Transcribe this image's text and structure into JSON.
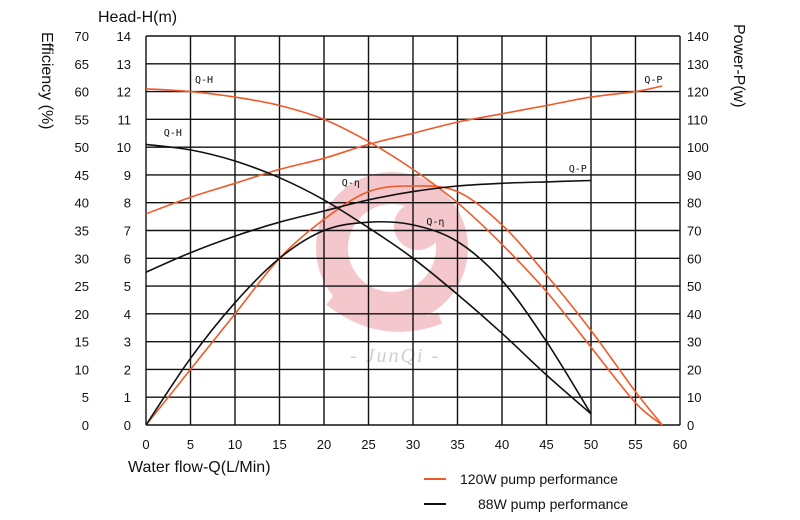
{
  "chart_data": {
    "type": "line",
    "x_label": "Water flow-Q(L/Min)",
    "y_left_outer_label": "Efficiency (%)",
    "y_left_inner_label": "Head-H(m)",
    "y_right_label": "Power-P(w)",
    "x_ticks": [
      "0",
      "5",
      "10",
      "15",
      "20",
      "25",
      "30",
      "35",
      "40",
      "45",
      "50",
      "55",
      "60"
    ],
    "eff_ticks": [
      "0",
      "5",
      "10",
      "15",
      "20",
      "25",
      "30",
      "35",
      "40",
      "45",
      "50",
      "55",
      "60",
      "65",
      "70"
    ],
    "head_ticks": [
      "0",
      "1",
      "2",
      "3",
      "4",
      "5",
      "6",
      "7",
      "8",
      "9",
      "10",
      "11",
      "12",
      "13",
      "14"
    ],
    "power_ticks": [
      "0",
      "10",
      "20",
      "30",
      "40",
      "50",
      "60",
      "70",
      "80",
      "90",
      "100",
      "110",
      "120",
      "130",
      "140"
    ],
    "xlim": [
      0,
      60
    ],
    "head_lim": [
      0,
      14
    ],
    "eff_lim": [
      0,
      70
    ],
    "power_lim": [
      0,
      140
    ],
    "grid": true,
    "watermark": "JunQi",
    "legend": [
      {
        "label": "120W pump performance",
        "color": "#f05a28"
      },
      {
        "label": "88W pump performance",
        "color": "#111111"
      }
    ],
    "series": [
      {
        "name": "120W pump performance",
        "curve": "Q-H",
        "axis": "head",
        "color": "#f05a28",
        "x": [
          0,
          5,
          10,
          15,
          20,
          25,
          30,
          35,
          40,
          45,
          50,
          55,
          58
        ],
        "y": [
          12.1,
          12.0,
          11.8,
          11.5,
          11.0,
          10.2,
          9.2,
          8.0,
          6.5,
          4.8,
          2.8,
          0.8,
          0
        ]
      },
      {
        "name": "120W pump performance",
        "curve": "Q-P",
        "axis": "power",
        "color": "#f05a28",
        "x": [
          0,
          5,
          10,
          15,
          20,
          25,
          30,
          35,
          40,
          45,
          50,
          55,
          58
        ],
        "y": [
          76,
          82,
          87,
          92,
          96,
          101,
          105,
          109,
          112,
          115,
          118,
          120,
          122
        ]
      },
      {
        "name": "120W pump performance",
        "curve": "Q-η",
        "axis": "eff",
        "color": "#f05a28",
        "x": [
          0,
          5,
          10,
          15,
          20,
          25,
          30,
          35,
          40,
          45,
          50,
          55,
          58
        ],
        "y": [
          0,
          10,
          20,
          30,
          37,
          42,
          43,
          42,
          36,
          27,
          17,
          6,
          0
        ]
      },
      {
        "name": "88W pump performance",
        "curve": "Q-H",
        "axis": "head",
        "color": "#111111",
        "x": [
          0,
          5,
          10,
          15,
          20,
          25,
          30,
          35,
          40,
          45,
          50
        ],
        "y": [
          10.1,
          9.9,
          9.5,
          8.9,
          8.1,
          7.1,
          6.0,
          4.7,
          3.3,
          1.8,
          0.4
        ]
      },
      {
        "name": "88W pump performance",
        "curve": "Q-P",
        "axis": "power",
        "color": "#111111",
        "x": [
          0,
          5,
          10,
          15,
          20,
          25,
          30,
          35,
          40,
          45,
          50
        ],
        "y": [
          55,
          62,
          68,
          73,
          77,
          81,
          84,
          86,
          87,
          87.5,
          88
        ]
      },
      {
        "name": "88W pump performance",
        "curve": "Q-η",
        "axis": "eff",
        "color": "#111111",
        "x": [
          0,
          5,
          10,
          15,
          20,
          25,
          30,
          35,
          40,
          45,
          50
        ],
        "y": [
          0,
          12,
          22,
          30,
          35,
          36.5,
          36,
          33,
          26,
          15,
          2
        ]
      }
    ],
    "curve_labels": [
      {
        "text": "Q-H",
        "x": 5.5,
        "axis": "head",
        "y": 12.3
      },
      {
        "text": "Q-H",
        "x": 2.0,
        "axis": "head",
        "y": 10.4
      },
      {
        "text": "Q-P",
        "x": 56.0,
        "axis": "power",
        "y": 123
      },
      {
        "text": "Q-P",
        "x": 47.5,
        "axis": "power",
        "y": 91
      },
      {
        "text": "Q-η",
        "x": 22.0,
        "axis": "eff",
        "y": 43
      },
      {
        "text": "Q-η",
        "x": 31.5,
        "axis": "eff",
        "y": 36
      }
    ]
  }
}
